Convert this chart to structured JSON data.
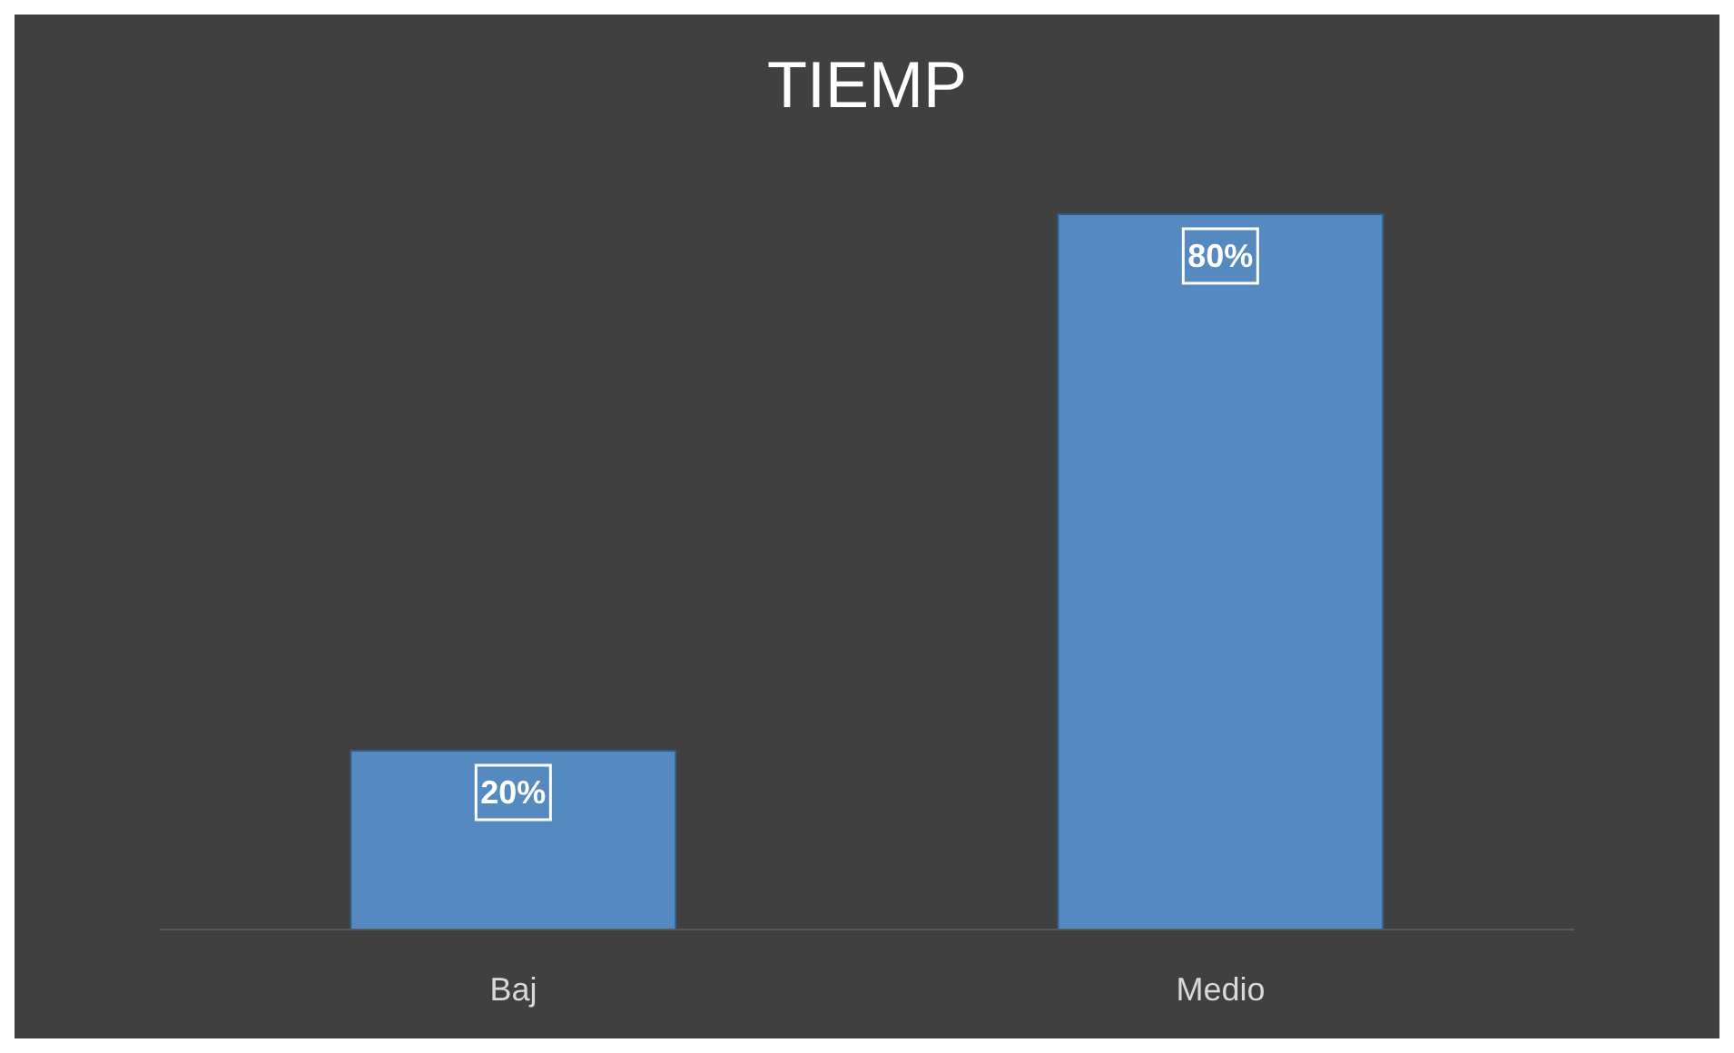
{
  "chart_data": {
    "type": "bar",
    "title": "TIEMP",
    "categories": [
      "Baj",
      "Medio"
    ],
    "values": [
      20,
      80
    ],
    "value_labels": [
      "20%",
      "80%"
    ],
    "color": "#558ac0"
  }
}
